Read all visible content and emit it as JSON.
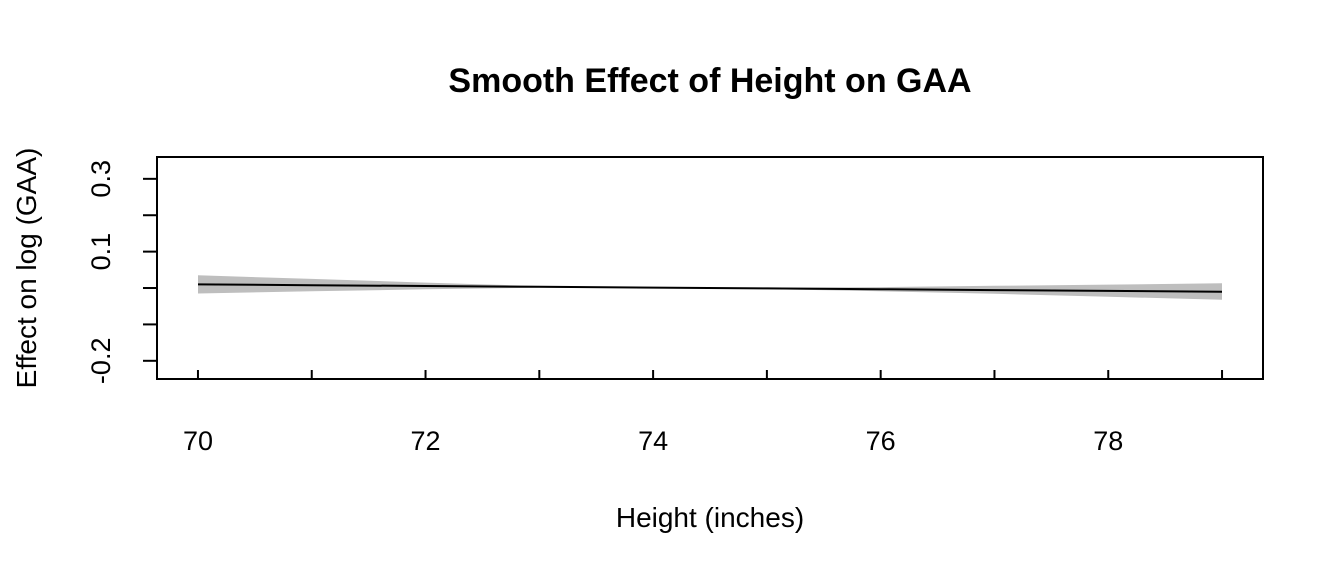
{
  "chart_data": {
    "type": "line",
    "title": "Smooth Effect of Height on GAA",
    "xlabel": "Height (inches)",
    "ylabel": "Effect on log (GAA)",
    "xlim": [
      69.64,
      79.36
    ],
    "ylim": [
      -0.25,
      0.36
    ],
    "x_ticks": [
      70,
      71,
      72,
      73,
      74,
      75,
      76,
      77,
      78,
      79
    ],
    "x_tick_labels": [
      "70",
      "",
      "72",
      "",
      "74",
      "",
      "76",
      "",
      "78",
      ""
    ],
    "y_ticks": [
      -0.2,
      -0.1,
      0.0,
      0.1,
      0.2,
      0.3
    ],
    "y_tick_labels": [
      "-0.2",
      "",
      "",
      "0.1",
      "",
      "0.3"
    ],
    "grid": false,
    "series": [
      {
        "x": [
          70,
          71,
          72,
          73,
          74,
          75,
          76,
          77,
          78,
          79
        ],
        "values": [
          0.01,
          0.0078,
          0.0056,
          0.0033,
          0.0011,
          -0.0011,
          -0.0033,
          -0.0056,
          -0.0078,
          -0.01
        ],
        "lower": [
          -0.015,
          -0.009,
          -0.0035,
          0.001,
          0.0,
          -0.003,
          -0.009,
          -0.016,
          -0.024,
          -0.032
        ],
        "upper": [
          0.035,
          0.025,
          0.015,
          0.0055,
          0.0022,
          0.001,
          0.0025,
          0.006,
          0.0095,
          0.013
        ],
        "line_color": "#000000",
        "band_color": "#bebebe"
      }
    ]
  }
}
